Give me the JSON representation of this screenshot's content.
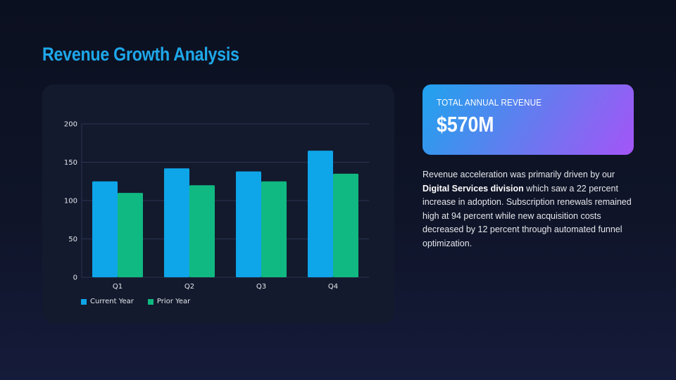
{
  "slide": {
    "title": "Revenue Growth Analysis"
  },
  "kpi": {
    "label": "TOTAL ANNUAL REVENUE",
    "value": "$570M"
  },
  "description": {
    "before": "Revenue acceleration was primarily driven by our ",
    "highlight": "Digital Services division",
    "after": " which saw a 22 percent increase in adoption. Subscription renewals remained high at 94 percent while new acquisition costs decreased by 12 percent through automated funnel optimization."
  },
  "colors": {
    "current_year": "#0ea5e9",
    "prior_year": "#10b981",
    "title": "#1ea8ea",
    "grid": "#2b3452"
  },
  "chart_data": {
    "type": "bar",
    "title": "",
    "xlabel": "",
    "ylabel": "",
    "categories": [
      "Q1",
      "Q2",
      "Q3",
      "Q4"
    ],
    "series": [
      {
        "name": "Current Year",
        "values": [
          125,
          142,
          138,
          165
        ]
      },
      {
        "name": "Prior Year",
        "values": [
          110,
          120,
          125,
          135
        ]
      }
    ],
    "ylim": [
      0,
      200
    ],
    "yticks": [
      0,
      50,
      100,
      150,
      200
    ],
    "grid": true,
    "legend": "bottom-left"
  }
}
